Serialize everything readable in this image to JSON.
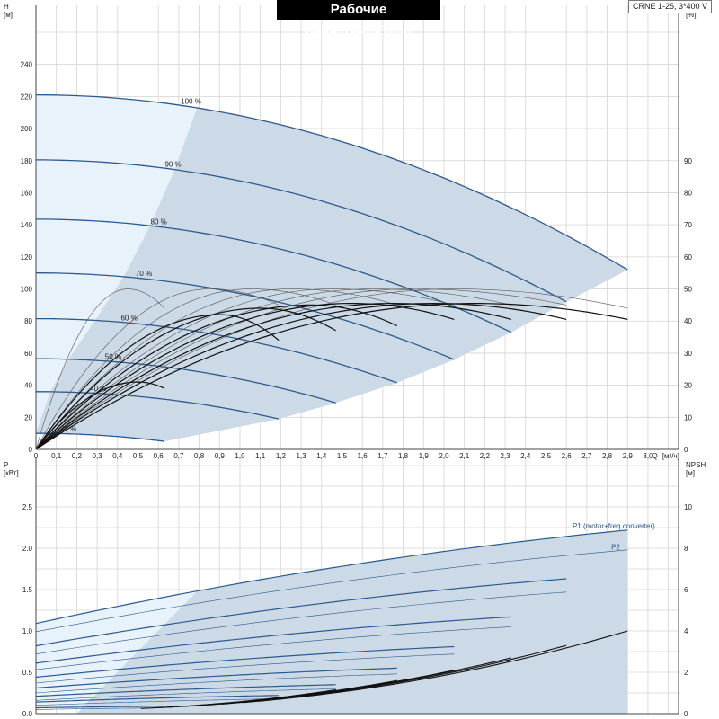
{
  "header": {
    "title": "Рабочие характеристики",
    "model": "CRNE 1-25, 3*400 V"
  },
  "colors": {
    "operating_area": "#ccd9e6",
    "light_area": "#e8f2fb",
    "speed_curve": "#2d5a8c",
    "eta_curve": "#111111",
    "grid": "#d4d4d4"
  },
  "chart_data": [
    {
      "type": "line",
      "name": "head-efficiency",
      "ylabel": "H",
      "yunit": "[м]",
      "y2label": "eta",
      "y2unit": "[%]",
      "xlabel": "Q",
      "xunit": "[м³/ч]",
      "xlim": [
        0,
        3.15
      ],
      "ylim": [
        0,
        260
      ],
      "y2lim": [
        0,
        130
      ],
      "xticks": [
        "0",
        "0,1",
        "0,2",
        "0,3",
        "0,4",
        "0,5",
        "0,6",
        "0,7",
        "0,8",
        "0,9",
        "1,0",
        "1,1",
        "1,2",
        "1,3",
        "1,4",
        "1,5",
        "1,6",
        "1,7",
        "1,8",
        "1,9",
        "2,0",
        "2,1",
        "2,2",
        "2,3",
        "2,4",
        "2,5",
        "2,6",
        "2,7",
        "2,8",
        "2,9",
        "3,0"
      ],
      "yticks": [
        0,
        20,
        40,
        60,
        80,
        100,
        120,
        140,
        160,
        180,
        200,
        220,
        240
      ],
      "y2ticks": [
        0,
        10,
        20,
        30,
        40,
        50,
        60,
        70,
        80,
        90
      ],
      "speed_curves": [
        {
          "label": "100 %",
          "h0": 221,
          "qmax": 2.9,
          "hend": 112
        },
        {
          "label": "90 %",
          "h0": 180.5,
          "qmax": 2.6,
          "hend": 92
        },
        {
          "label": "80 %",
          "h0": 143.5,
          "qmax": 2.33,
          "hend": 73
        },
        {
          "label": "70 %",
          "h0": 110,
          "qmax": 2.05,
          "hend": 56
        },
        {
          "label": "60 %",
          "h0": 81.5,
          "qmax": 1.77,
          "hend": 41.5
        },
        {
          "label": "50 %",
          "h0": 56.5,
          "qmax": 1.47,
          "hend": 29
        },
        {
          "label": "40 %",
          "h0": 36,
          "qmax": 1.19,
          "hend": 19
        },
        {
          "label": "21 %",
          "h0": 10,
          "qmax": 0.63,
          "hend": 5
        }
      ],
      "eta_curves": [
        {
          "qmax": 2.9,
          "peak": 50,
          "qpeak": 2.05,
          "eend": 44
        },
        {
          "qmax": 2.6,
          "peak": 50,
          "qpeak": 1.85,
          "eend": 45
        },
        {
          "qmax": 2.33,
          "peak": 50,
          "qpeak": 1.65,
          "eend": 45
        },
        {
          "qmax": 2.05,
          "peak": 50,
          "qpeak": 1.45,
          "eend": 45
        },
        {
          "qmax": 1.77,
          "peak": 50,
          "qpeak": 1.25,
          "eend": 45
        },
        {
          "qmax": 1.47,
          "peak": 50,
          "qpeak": 1.05,
          "eend": 45
        },
        {
          "qmax": 1.19,
          "peak": 50,
          "qpeak": 0.85,
          "eend": 45
        },
        {
          "qmax": 0.63,
          "peak": 50,
          "qpeak": 0.45,
          "eend": 44
        },
        {
          "qmax": 2.9,
          "peak": 45.5,
          "qpeak": 2.15,
          "eend": 40.5
        },
        {
          "qmax": 2.6,
          "peak": 45.5,
          "qpeak": 1.95,
          "eend": 40.5
        },
        {
          "qmax": 2.33,
          "peak": 45.5,
          "qpeak": 1.75,
          "eend": 40.5
        },
        {
          "qmax": 2.05,
          "peak": 45.5,
          "qpeak": 1.55,
          "eend": 40.5
        },
        {
          "qmax": 1.77,
          "peak": 45,
          "qpeak": 1.35,
          "eend": 38.5
        },
        {
          "qmax": 1.47,
          "peak": 44,
          "qpeak": 1.1,
          "eend": 37
        },
        {
          "qmax": 1.19,
          "peak": 42,
          "qpeak": 0.9,
          "eend": 34
        },
        {
          "qmax": 0.63,
          "peak": 21,
          "qpeak": 0.5,
          "eend": 19
        }
      ]
    },
    {
      "type": "line",
      "name": "power-npsh",
      "ylabel": "P",
      "yunit": "[кВт]",
      "y2label": "NPSH",
      "y2unit": "[м]",
      "xlim": [
        0,
        3.15
      ],
      "ylim": [
        0,
        3.0
      ],
      "y2lim": [
        0,
        12
      ],
      "yticks": [
        "0.0",
        "0.5",
        "1.0",
        "1.5",
        "2.0",
        "2.5"
      ],
      "y2ticks": [
        0,
        2,
        4,
        6,
        8,
        10
      ],
      "series_labels": [
        {
          "name": "P1 (motor+freq.converter)",
          "q": 2.63,
          "p": 2.22
        },
        {
          "name": "P2",
          "q": 2.82,
          "p": 1.96
        }
      ],
      "p1_curves": [
        {
          "qmax": 2.9,
          "p0": 1.09,
          "pend": 2.22
        },
        {
          "qmax": 2.6,
          "p0": 0.82,
          "pend": 1.63
        },
        {
          "qmax": 2.33,
          "p0": 0.61,
          "pend": 1.17
        },
        {
          "qmax": 2.05,
          "p0": 0.44,
          "pend": 0.81
        },
        {
          "qmax": 1.77,
          "p0": 0.31,
          "pend": 0.55
        },
        {
          "qmax": 1.47,
          "p0": 0.21,
          "pend": 0.35
        },
        {
          "qmax": 1.19,
          "p0": 0.14,
          "pend": 0.22
        },
        {
          "qmax": 0.63,
          "p0": 0.07,
          "pend": 0.09
        }
      ],
      "p2_curves": [
        {
          "qmax": 2.9,
          "p0": 0.99,
          "pend": 1.98
        },
        {
          "qmax": 2.6,
          "p0": 0.72,
          "pend": 1.47
        },
        {
          "qmax": 2.33,
          "p0": 0.53,
          "pend": 1.05
        },
        {
          "qmax": 2.05,
          "p0": 0.37,
          "pend": 0.72
        },
        {
          "qmax": 1.77,
          "p0": 0.25,
          "pend": 0.48
        },
        {
          "qmax": 1.47,
          "p0": 0.16,
          "pend": 0.3
        },
        {
          "qmax": 1.19,
          "p0": 0.1,
          "pend": 0.18
        },
        {
          "qmax": 0.63,
          "p0": 0.05,
          "pend": 0.07
        }
      ],
      "npsh_curves": [
        {
          "qmax": 2.9,
          "nend": 4.0
        },
        {
          "qmax": 2.6,
          "nend": 3.3
        },
        {
          "qmax": 2.33,
          "nend": 2.7
        },
        {
          "qmax": 2.05,
          "nend": 2.1
        },
        {
          "qmax": 1.77,
          "nend": 1.6
        },
        {
          "qmax": 1.47,
          "nend": 1.15
        }
      ]
    }
  ]
}
